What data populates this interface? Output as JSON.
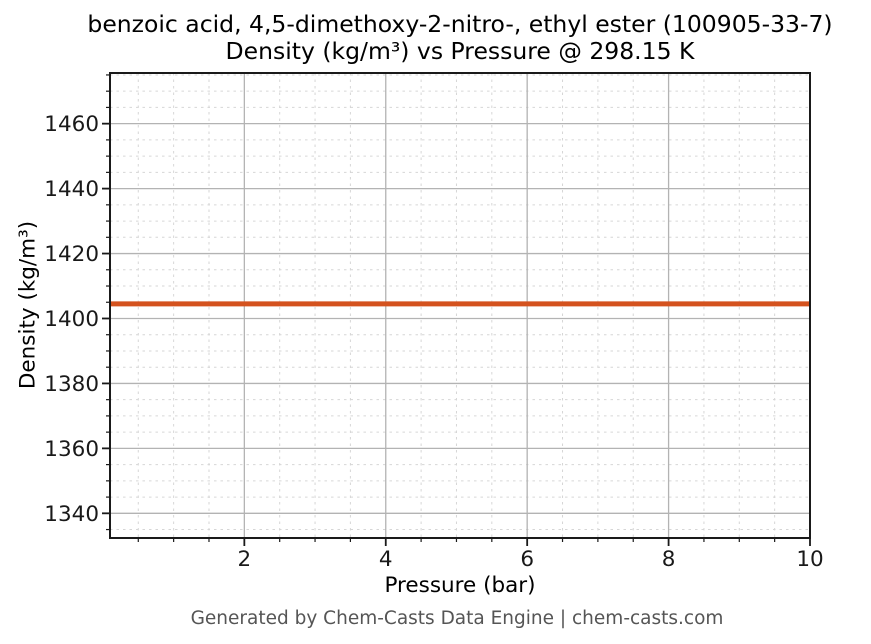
{
  "title": {
    "line1": "benzoic acid, 4,5-dimethoxy-2-nitro-, ethyl ester (100905-33-7)",
    "line2": "Density (kg/m³) vs Pressure @ 298.15 K"
  },
  "footer": "Generated by Chem-Casts Data Engine | chem-casts.com",
  "colors": {
    "line": "#d4521e",
    "grid_major": "#b3b3b3",
    "grid_minor": "#d6d6d6",
    "spine": "#1a1a1a",
    "tick_text": "#191919",
    "footer_text": "#555555"
  },
  "chart_data": {
    "type": "line",
    "title": "benzoic acid, 4,5-dimethoxy-2-nitro-, ethyl ester (100905-33-7)\nDensity (kg/m³) vs Pressure @ 298.15 K",
    "xlabel": "Pressure (bar)",
    "ylabel": "Density (kg/m³)",
    "xlim": [
      0.1,
      10
    ],
    "ylim": [
      1332.4,
      1475.6
    ],
    "xticks": [
      2,
      4,
      6,
      8,
      10
    ],
    "yticks": [
      1340,
      1360,
      1380,
      1400,
      1420,
      1440,
      1460
    ],
    "minor_xtick_step": 0.5,
    "minor_ytick_step": 5,
    "grid": "major solid, minor dashed, both on",
    "legend": "none",
    "series": [
      {
        "name": "Density @ 298.15 K",
        "x": [
          0.1,
          10
        ],
        "y": [
          1404.5,
          1404.5
        ],
        "color": "#d4521e",
        "linewidth": 5
      }
    ]
  }
}
